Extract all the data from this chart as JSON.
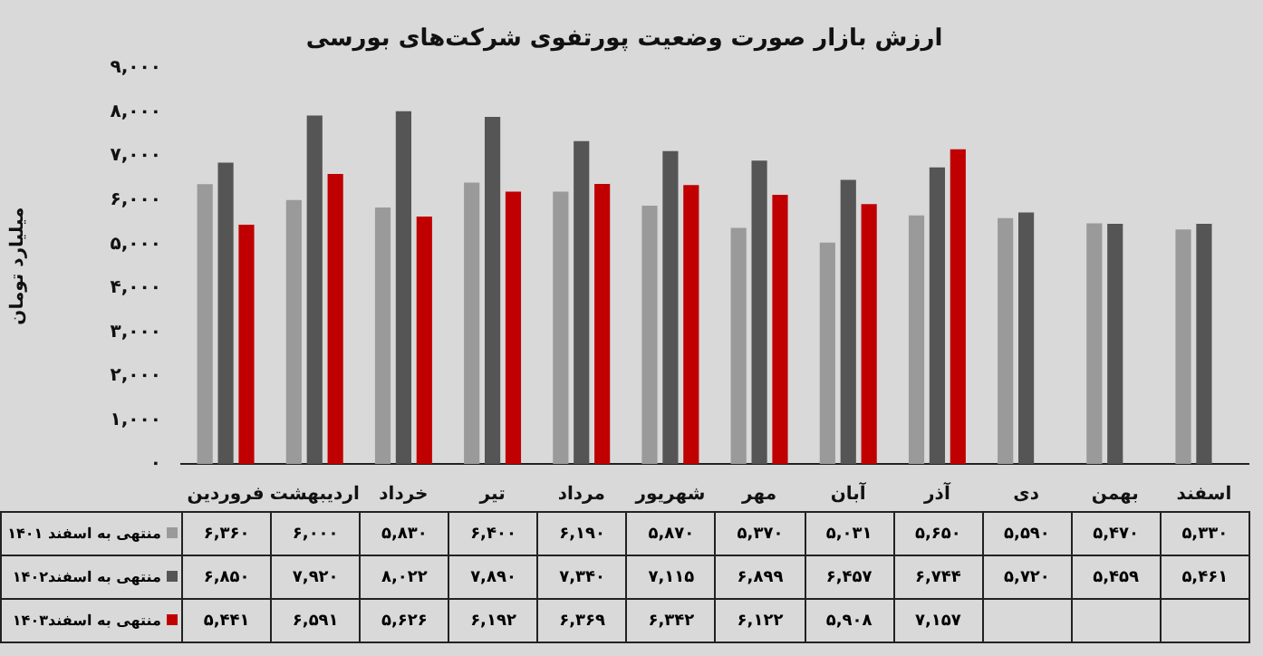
{
  "chart_data": {
    "type": "bar",
    "title": "ارزش بازار صورت وضعیت پورتفوی شرکت‌های بورسی",
    "ylabel": "میلیارد تومان",
    "categories": [
      "فروردین",
      "اردیبهشت",
      "خرداد",
      "تیر",
      "مرداد",
      "شهریور",
      "مهر",
      "آبان",
      "آذر",
      "دی",
      "بهمن",
      "اسفند"
    ],
    "series": [
      {
        "name": "منتهی به اسفند ۱۴۰۱",
        "color": "#9a9a9a",
        "values": [
          6360,
          6000,
          5830,
          6400,
          6190,
          5870,
          5370,
          5031,
          5650,
          5590,
          5470,
          5330
        ],
        "value_labels": [
          "۶,۳۶۰",
          "۶,۰۰۰",
          "۵,۸۳۰",
          "۶,۴۰۰",
          "۶,۱۹۰",
          "۵,۸۷۰",
          "۵,۳۷۰",
          "۵,۰۳۱",
          "۵,۶۵۰",
          "۵,۵۹۰",
          "۵,۴۷۰",
          "۵,۳۳۰"
        ]
      },
      {
        "name": "منتهی به اسفند۱۴۰۲",
        "color": "#555555",
        "values": [
          6850,
          7920,
          8022,
          7890,
          7340,
          7115,
          6899,
          6457,
          6744,
          5720,
          5459,
          5461
        ],
        "value_labels": [
          "۶,۸۵۰",
          "۷,۹۲۰",
          "۸,۰۲۲",
          "۷,۸۹۰",
          "۷,۳۴۰",
          "۷,۱۱۵",
          "۶,۸۹۹",
          "۶,۴۵۷",
          "۶,۷۴۴",
          "۵,۷۲۰",
          "۵,۴۵۹",
          "۵,۴۶۱"
        ]
      },
      {
        "name": "منتهی به اسفند۱۴۰۳",
        "color": "#c00000",
        "values": [
          5441,
          6591,
          5626,
          6192,
          6369,
          6342,
          6122,
          5908,
          7157,
          null,
          null,
          null
        ],
        "value_labels": [
          "۵,۴۴۱",
          "۶,۵۹۱",
          "۵,۶۲۶",
          "۶,۱۹۲",
          "۶,۳۶۹",
          "۶,۳۴۲",
          "۶,۱۲۲",
          "۵,۹۰۸",
          "۷,۱۵۷",
          null,
          null,
          null
        ]
      }
    ],
    "ylim": [
      0,
      9000
    ],
    "yticks": [
      {
        "value": 0,
        "label": "۰"
      },
      {
        "value": 1000,
        "label": "۱,۰۰۰"
      },
      {
        "value": 2000,
        "label": "۲,۰۰۰"
      },
      {
        "value": 3000,
        "label": "۳,۰۰۰"
      },
      {
        "value": 4000,
        "label": "۴,۰۰۰"
      },
      {
        "value": 5000,
        "label": "۵,۰۰۰"
      },
      {
        "value": 6000,
        "label": "۶,۰۰۰"
      },
      {
        "value": 7000,
        "label": "۷,۰۰۰"
      },
      {
        "value": 8000,
        "label": "۸,۰۰۰"
      },
      {
        "value": 9000,
        "label": "۹,۰۰۰"
      }
    ],
    "grid": false,
    "legend": "bottom left"
  }
}
